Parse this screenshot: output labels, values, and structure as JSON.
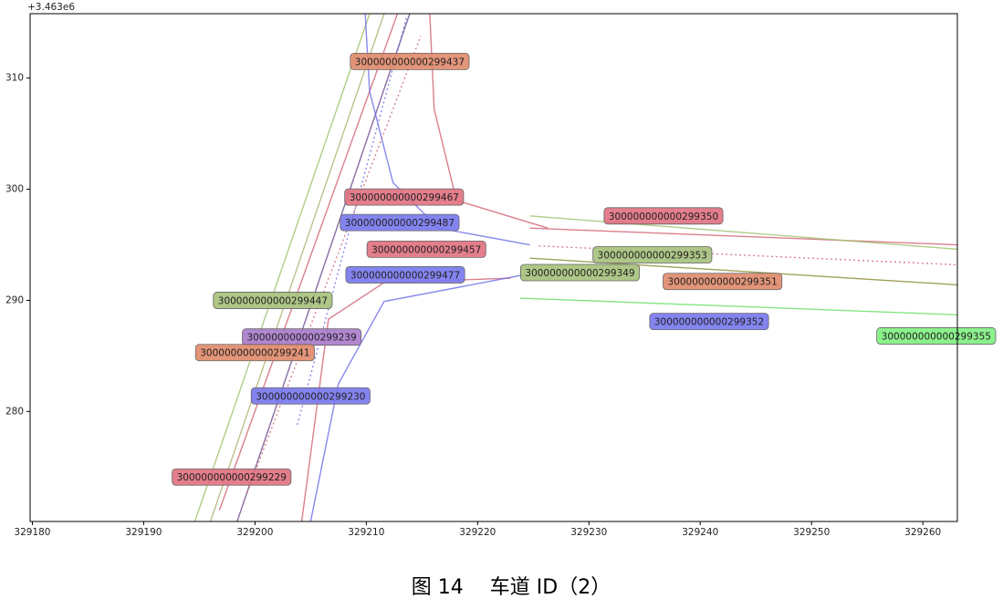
{
  "chart_data": {
    "type": "line",
    "offset_text": "+3.463e6",
    "caption": "图 14　 车道 ID（2）",
    "xlim": [
      329179.8,
      329263.1
    ],
    "ylim": [
      270.1,
      315.8
    ],
    "xticks": [
      329180,
      329190,
      329200,
      329210,
      329220,
      329230,
      329240,
      329250,
      329260
    ],
    "yticks": [
      280,
      290,
      300,
      310
    ],
    "series": [
      {
        "color": "#9cc06a",
        "dashed": false,
        "x": [
          329194.6,
          329210.3
        ],
        "values": [
          270.1,
          315.8
        ]
      },
      {
        "color": "#b0b070",
        "dashed": false,
        "x": [
          329196.0,
          329211.6
        ],
        "values": [
          270.1,
          315.8
        ]
      },
      {
        "color": "#6a4a8a",
        "dashed": false,
        "x": [
          329198.4,
          329213.9
        ],
        "values": [
          270.1,
          315.8
        ]
      },
      {
        "color": "#d06070",
        "dashed": false,
        "x": [
          329196.8,
          329212.8
        ],
        "values": [
          271.1,
          315.8
        ]
      },
      {
        "color": "#6a6ae8",
        "dashed": false,
        "x": [
          329209.9,
          329210.3,
          329212.4,
          329216.5,
          329224.7
        ],
        "values": [
          315.8,
          308.8,
          300.6,
          296.5,
          295.0
        ]
      },
      {
        "color": "#d06070",
        "dashed": false,
        "x": [
          329215.7,
          329216.1,
          329218.1,
          329226.3
        ],
        "values": [
          315.8,
          307.2,
          299.0,
          296.5
        ]
      },
      {
        "color": "#d06070",
        "dashed": false,
        "x": [
          329204.2,
          329206.6,
          329211.6,
          329223.0
        ],
        "values": [
          270.1,
          288.3,
          291.6,
          292.0
        ]
      },
      {
        "color": "#6a6ae8",
        "dashed": false,
        "x": [
          329205.0,
          329207.5,
          329211.6,
          329224.7
        ],
        "values": [
          270.1,
          282.5,
          289.9,
          292.4
        ]
      },
      {
        "color": "#d06070",
        "dashed": true,
        "x": [
          329199.3,
          329214.9
        ],
        "values": [
          272.7,
          313.8
        ]
      },
      {
        "color": "#6a6ae8",
        "dashed": true,
        "x": [
          329203.8,
          329213.6
        ],
        "values": [
          278.8,
          315.4
        ]
      },
      {
        "color": "#d06070",
        "dashed": false,
        "x": [
          329224.7,
          329263.1
        ],
        "values": [
          296.5,
          295.0
        ]
      },
      {
        "color": "#9cc06a",
        "dashed": false,
        "x": [
          329224.7,
          329263.1
        ],
        "values": [
          297.6,
          294.6
        ]
      },
      {
        "color": "#8a8a30",
        "dashed": false,
        "x": [
          329224.7,
          329263.1
        ],
        "values": [
          293.8,
          291.4
        ]
      },
      {
        "color": "#d06070",
        "dashed": true,
        "x": [
          329225.5,
          329263.1
        ],
        "values": [
          294.9,
          293.2
        ]
      },
      {
        "color": "#66dd66",
        "dashed": false,
        "x": [
          329223.8,
          329263.1
        ],
        "values": [
          290.2,
          288.7
        ]
      }
    ],
    "annotations": [
      {
        "text": "300000000000299437",
        "x": 329213.9,
        "y": 311.5,
        "color": "#e08a6a"
      },
      {
        "text": "300000000000299467",
        "x": 329213.4,
        "y": 299.3,
        "color": "#e07080"
      },
      {
        "text": "300000000000299487",
        "x": 329213.0,
        "y": 297.0,
        "color": "#7777ee"
      },
      {
        "text": "300000000000299457",
        "x": 329215.4,
        "y": 294.6,
        "color": "#e07080"
      },
      {
        "text": "300000000000299477",
        "x": 329213.5,
        "y": 292.3,
        "color": "#7777ee"
      },
      {
        "text": "300000000000299447",
        "x": 329201.6,
        "y": 290.0,
        "color": "#a5c07a"
      },
      {
        "text": "300000000000299239",
        "x": 329204.2,
        "y": 286.7,
        "color": "#a97acb"
      },
      {
        "text": "300000000000299241",
        "x": 329200.0,
        "y": 285.3,
        "color": "#e08a6a"
      },
      {
        "text": "300000000000299230",
        "x": 329205.0,
        "y": 281.4,
        "color": "#7777ee"
      },
      {
        "text": "300000000000299229",
        "x": 329197.9,
        "y": 274.1,
        "color": "#e07080"
      },
      {
        "text": "300000000000299350",
        "x": 329236.7,
        "y": 297.6,
        "color": "#e07080"
      },
      {
        "text": "300000000000299353",
        "x": 329235.7,
        "y": 294.1,
        "color": "#a5c07a"
      },
      {
        "text": "300000000000299349",
        "x": 329229.2,
        "y": 292.5,
        "color": "#a5c07a"
      },
      {
        "text": "300000000000299351",
        "x": 329242.0,
        "y": 291.7,
        "color": "#e08a6a"
      },
      {
        "text": "300000000000299352",
        "x": 329240.8,
        "y": 288.1,
        "color": "#7777ee"
      },
      {
        "text": "300000000000299355",
        "x": 329261.2,
        "y": 286.8,
        "color": "#80f080"
      }
    ]
  }
}
